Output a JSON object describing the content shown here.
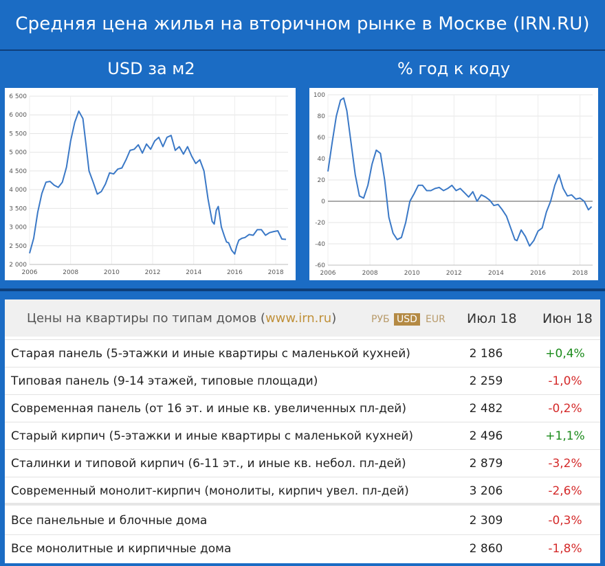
{
  "header": {
    "title": "Средняя цена жилья на вторичном рынке в Москве (IRN.RU)",
    "left_subtitle": "USD за м2",
    "right_subtitle": "% год к коду"
  },
  "chart_data": [
    {
      "type": "line",
      "title": "USD за м2",
      "x_ticks": [
        "2006",
        "2008",
        "2010",
        "2012",
        "2014",
        "2016",
        "2018"
      ],
      "y_ticks": [
        "2 000",
        "2 500",
        "3 000",
        "3 500",
        "4 000",
        "4 500",
        "5 000",
        "5 500",
        "6 000",
        "6 500"
      ],
      "xlim": [
        2006,
        2018.6
      ],
      "ylim": [
        2000,
        6500
      ],
      "grid": true,
      "series": [
        {
          "color": "#3a78c6",
          "x": [
            2006.0,
            2006.2,
            2006.4,
            2006.6,
            2006.8,
            2007.0,
            2007.2,
            2007.4,
            2007.6,
            2007.8,
            2008.0,
            2008.2,
            2008.4,
            2008.6,
            2008.75,
            2008.9,
            2009.1,
            2009.3,
            2009.5,
            2009.7,
            2009.9,
            2010.1,
            2010.3,
            2010.5,
            2010.7,
            2010.9,
            2011.1,
            2011.3,
            2011.5,
            2011.7,
            2011.9,
            2012.1,
            2012.3,
            2012.5,
            2012.7,
            2012.9,
            2013.1,
            2013.3,
            2013.5,
            2013.7,
            2013.9,
            2014.1,
            2014.3,
            2014.5,
            2014.7,
            2014.9,
            2015.0,
            2015.1,
            2015.2,
            2015.35,
            2015.5,
            2015.6,
            2015.7,
            2015.85,
            2016.0,
            2016.1,
            2016.2,
            2016.35,
            2016.5,
            2016.7,
            2016.9,
            2017.1,
            2017.3,
            2017.5,
            2017.7,
            2017.9,
            2018.1,
            2018.3,
            2018.5
          ],
          "y": [
            2300,
            2700,
            3400,
            3900,
            4200,
            4220,
            4120,
            4060,
            4200,
            4600,
            5300,
            5800,
            6100,
            5900,
            5200,
            4500,
            4200,
            3880,
            3950,
            4150,
            4450,
            4420,
            4550,
            4580,
            4800,
            5050,
            5080,
            5200,
            4980,
            5220,
            5080,
            5300,
            5400,
            5150,
            5400,
            5450,
            5050,
            5150,
            4950,
            5150,
            4900,
            4700,
            4800,
            4500,
            3750,
            3150,
            3080,
            3450,
            3550,
            3000,
            2750,
            2600,
            2580,
            2380,
            2280,
            2500,
            2650,
            2700,
            2720,
            2800,
            2780,
            2930,
            2930,
            2780,
            2850,
            2880,
            2900,
            2680,
            2670
          ]
        }
      ]
    },
    {
      "type": "line",
      "title": "% год к коду",
      "x_ticks": [
        "2006",
        "2008",
        "2010",
        "2012",
        "2014",
        "2016",
        "2018"
      ],
      "y_ticks": [
        "-60",
        "-40",
        "-20",
        "0",
        "20",
        "40",
        "60",
        "80",
        "100"
      ],
      "xlim": [
        2006,
        2018.6
      ],
      "ylim": [
        -60,
        100
      ],
      "grid": true,
      "series": [
        {
          "color": "#3a78c6",
          "x": [
            2006.0,
            2006.2,
            2006.4,
            2006.6,
            2006.75,
            2006.9,
            2007.1,
            2007.3,
            2007.5,
            2007.7,
            2007.9,
            2008.1,
            2008.3,
            2008.5,
            2008.7,
            2008.9,
            2009.1,
            2009.3,
            2009.5,
            2009.7,
            2009.9,
            2010.1,
            2010.3,
            2010.5,
            2010.7,
            2010.9,
            2011.1,
            2011.3,
            2011.5,
            2011.7,
            2011.9,
            2012.1,
            2012.3,
            2012.5,
            2012.7,
            2012.9,
            2013.1,
            2013.3,
            2013.5,
            2013.7,
            2013.9,
            2014.1,
            2014.3,
            2014.5,
            2014.7,
            2014.9,
            2015.0,
            2015.2,
            2015.4,
            2015.6,
            2015.8,
            2016.0,
            2016.2,
            2016.4,
            2016.6,
            2016.8,
            2017.0,
            2017.2,
            2017.4,
            2017.6,
            2017.8,
            2018.0,
            2018.2,
            2018.4,
            2018.55
          ],
          "y": [
            28,
            55,
            80,
            95,
            97,
            85,
            55,
            25,
            5,
            3,
            15,
            35,
            48,
            45,
            20,
            -15,
            -30,
            -36,
            -34,
            -20,
            0,
            7,
            15,
            15,
            10,
            10,
            12,
            13,
            10,
            12,
            15,
            10,
            12,
            8,
            4,
            9,
            0,
            6,
            4,
            1,
            -4,
            -3,
            -8,
            -14,
            -25,
            -36,
            -37,
            -27,
            -33,
            -42,
            -37,
            -28,
            -25,
            -10,
            0,
            15,
            25,
            12,
            5,
            6,
            2,
            3,
            0,
            -8,
            -5
          ]
        }
      ]
    }
  ],
  "table": {
    "title_prefix": "Цены на квартиры по типам домов (",
    "title_link": "www.irn.ru",
    "title_suffix": ")",
    "currencies": [
      "РУБ",
      "USD",
      "EUR"
    ],
    "active_currency": "USD",
    "col_current": "Июл 18",
    "col_prev": "Июн 18",
    "rows": [
      {
        "name": "Старая панель (5-этажки и иные квартиры с маленькой кухней)",
        "value": "2 186",
        "change": "+0,4%"
      },
      {
        "name": "Типовая панель (9-14 этажей, типовые площади)",
        "value": "2 259",
        "change": "-1,0%"
      },
      {
        "name": "Современная панель (от 16 эт. и иные кв. увеличенных пл-дей)",
        "value": "2 482",
        "change": "-0,2%"
      },
      {
        "name": "Старый кирпич (5-этажки и иные квартиры с маленькой кухней)",
        "value": "2 496",
        "change": "+1,1%"
      },
      {
        "name": "Сталинки и типовой кирпич (6-11 эт., и иные кв. небол. пл-дей)",
        "value": "2 879",
        "change": "-3,2%"
      },
      {
        "name": "Современный монолит-кирпич (монолиты, кирпич увел. пл-дей)",
        "value": "3 206",
        "change": "-2,6%"
      }
    ],
    "summary_rows": [
      {
        "name": "Все панельные и блочные дома",
        "value": "2 309",
        "change": "-0,3%"
      },
      {
        "name": "Все монолитные и кирпичные дома",
        "value": "2 860",
        "change": "-1,8%"
      }
    ]
  }
}
